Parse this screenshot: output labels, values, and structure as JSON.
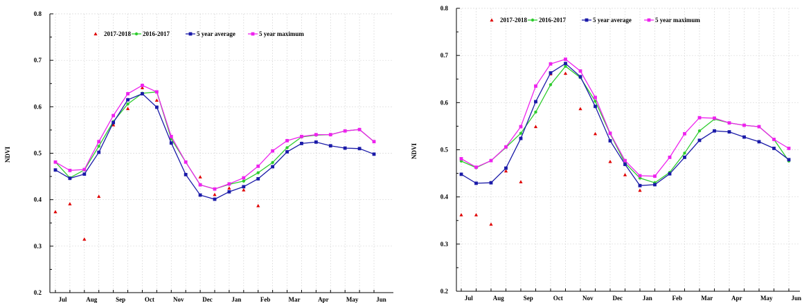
{
  "chart_data": [
    {
      "type": "line",
      "ylabel": "NDVI",
      "ylim": [
        0.2,
        0.8
      ],
      "yticks": [
        "0.2",
        "0.3",
        "0.4",
        "0.5",
        "0.6",
        "0.7",
        "0.8"
      ],
      "month_labels": [
        "Jul",
        "Aug",
        "Sep",
        "Oct",
        "Nov",
        "Dec",
        "Jan",
        "Feb",
        "Mar",
        "Apr",
        "May",
        "Jun"
      ],
      "grid": "dotted",
      "legend_position": "top",
      "x": [
        1,
        2,
        3,
        4,
        5,
        6,
        7,
        8,
        9,
        10,
        11,
        12,
        13,
        14,
        15,
        16,
        17,
        18,
        19,
        20,
        21,
        22,
        23
      ],
      "series": [
        {
          "name": "2017-2018",
          "style": "scatter",
          "marker": "triangle",
          "color": "#e00000",
          "values": [
            0.374,
            0.391,
            0.315,
            0.407,
            0.561,
            0.596,
            0.641,
            0.614,
            0.536,
            null,
            0.449,
            0.411,
            0.425,
            0.421,
            0.387,
            null,
            null,
            null,
            null,
            null,
            null,
            null,
            null
          ]
        },
        {
          "name": "2016-2017",
          "style": "line",
          "marker": "circle",
          "color": "#2ecc2e",
          "values": [
            0.481,
            0.447,
            0.464,
            0.515,
            0.568,
            0.606,
            0.629,
            0.632,
            0.531,
            0.481,
            0.432,
            0.423,
            0.433,
            0.44,
            0.458,
            0.48,
            0.512,
            0.535,
            0.539,
            0.54,
            0.548,
            0.551,
            0.525
          ]
        },
        {
          "name": "5 year average",
          "style": "line",
          "marker": "square",
          "color": "#1a1aa8",
          "values": [
            0.464,
            0.446,
            0.455,
            0.502,
            0.566,
            0.615,
            0.628,
            0.599,
            0.522,
            0.454,
            0.41,
            0.401,
            0.417,
            0.428,
            0.445,
            0.471,
            0.503,
            0.521,
            0.524,
            0.516,
            0.511,
            0.51,
            0.498
          ]
        },
        {
          "name": "5 year maximum",
          "style": "line",
          "marker": "square",
          "color": "#ee22ee",
          "values": [
            0.481,
            0.463,
            0.465,
            0.525,
            0.581,
            0.628,
            0.646,
            0.632,
            0.536,
            0.481,
            0.432,
            0.423,
            0.434,
            0.447,
            0.472,
            0.505,
            0.527,
            0.536,
            0.54,
            0.54,
            0.548,
            0.551,
            0.525
          ]
        }
      ]
    },
    {
      "type": "line",
      "ylabel": "NDVI",
      "ylim": [
        0.2,
        0.8
      ],
      "yticks": [
        "0.2",
        "0.3",
        "0.4",
        "0.5",
        "0.6",
        "0.7",
        "0.8"
      ],
      "month_labels": [
        "Jul",
        "Aug",
        "Sep",
        "Oct",
        "Nov",
        "Dec",
        "Jan",
        "Feb",
        "Mar",
        "Apr",
        "May",
        "Jun"
      ],
      "grid": "dotted",
      "legend_position": "top",
      "x": [
        1,
        2,
        3,
        4,
        5,
        6,
        7,
        8,
        9,
        10,
        11,
        12,
        13,
        14,
        15,
        16,
        17,
        18,
        19,
        20,
        21,
        22,
        23
      ],
      "series": [
        {
          "name": "2017-2018",
          "style": "scatter",
          "marker": "triangle",
          "color": "#e00000",
          "values": [
            0.362,
            0.362,
            0.342,
            0.455,
            0.432,
            0.549,
            0.661,
            0.662,
            0.587,
            0.534,
            0.475,
            0.447,
            0.414,
            null,
            null,
            null,
            null,
            null,
            null,
            null,
            null,
            null,
            null
          ]
        },
        {
          "name": "2016-2017",
          "style": "line",
          "marker": "circle",
          "color": "#2ecc2e",
          "values": [
            0.476,
            0.462,
            0.477,
            0.505,
            0.535,
            0.58,
            0.638,
            0.677,
            0.653,
            0.603,
            0.534,
            0.472,
            0.44,
            0.43,
            0.452,
            0.493,
            0.54,
            0.565,
            0.557,
            0.552,
            0.549,
            0.522,
            0.476
          ]
        },
        {
          "name": "5 year average",
          "style": "line",
          "marker": "square",
          "color": "#1a1aa8",
          "values": [
            0.448,
            0.429,
            0.43,
            0.461,
            0.524,
            0.602,
            0.663,
            0.683,
            0.655,
            0.592,
            0.519,
            0.469,
            0.424,
            0.426,
            0.449,
            0.484,
            0.52,
            0.54,
            0.538,
            0.527,
            0.517,
            0.503,
            0.479
          ]
        },
        {
          "name": "5 year maximum",
          "style": "line",
          "marker": "square",
          "color": "#ee22ee",
          "values": [
            0.481,
            0.463,
            0.477,
            0.506,
            0.549,
            0.635,
            0.682,
            0.692,
            0.667,
            0.611,
            0.535,
            0.477,
            0.445,
            0.444,
            0.484,
            0.534,
            0.568,
            0.567,
            0.557,
            0.552,
            0.549,
            0.522,
            0.503
          ]
        }
      ]
    }
  ]
}
